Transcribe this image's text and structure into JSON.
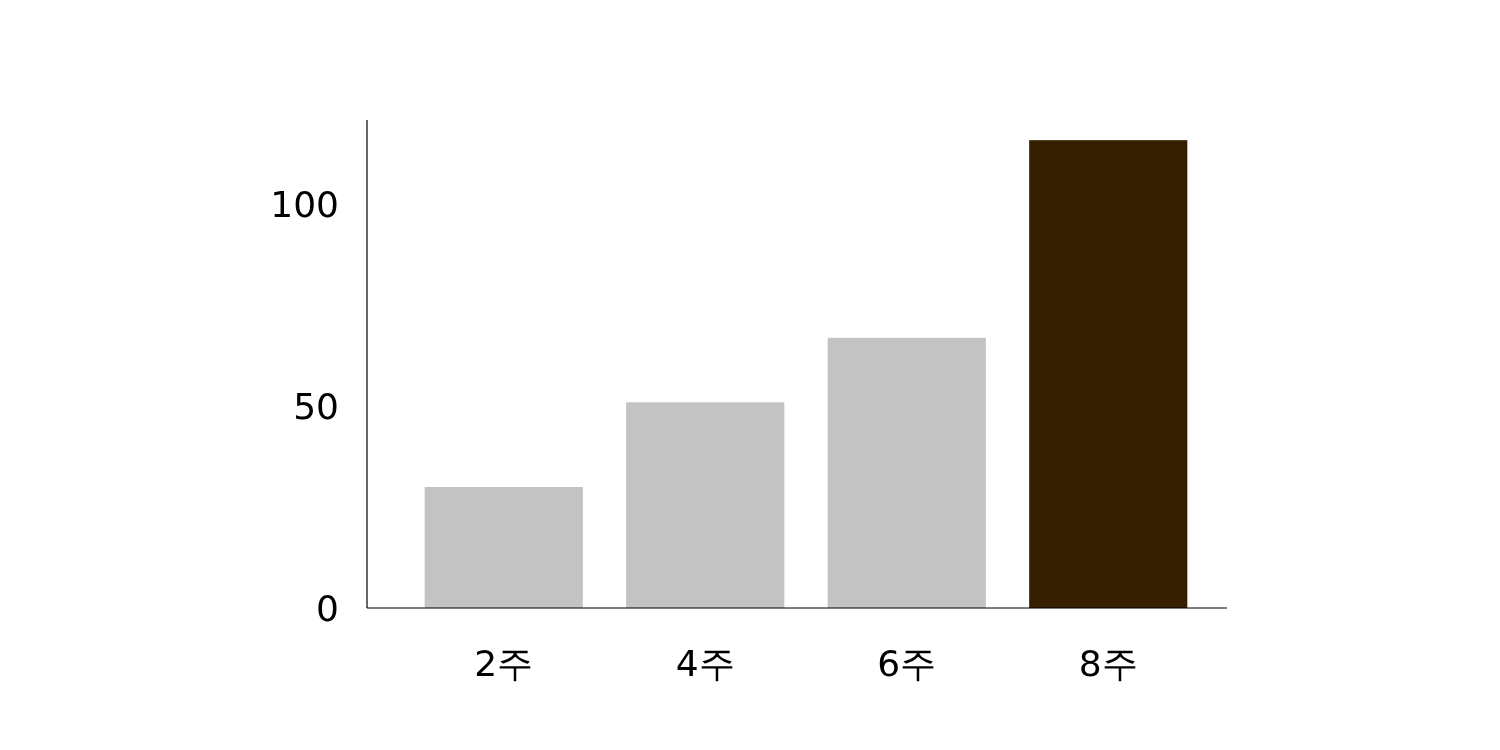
{
  "chart_data": {
    "type": "bar",
    "categories": [
      "2주",
      "4주",
      "6주",
      "8주"
    ],
    "values": [
      30,
      51,
      67,
      116
    ],
    "colors": [
      "#c3c3c3",
      "#c3c3c3",
      "#c3c3c3",
      "#361f00"
    ],
    "ylim": [
      0,
      121
    ],
    "yticks": [
      0,
      50,
      100
    ],
    "grid": false
  }
}
